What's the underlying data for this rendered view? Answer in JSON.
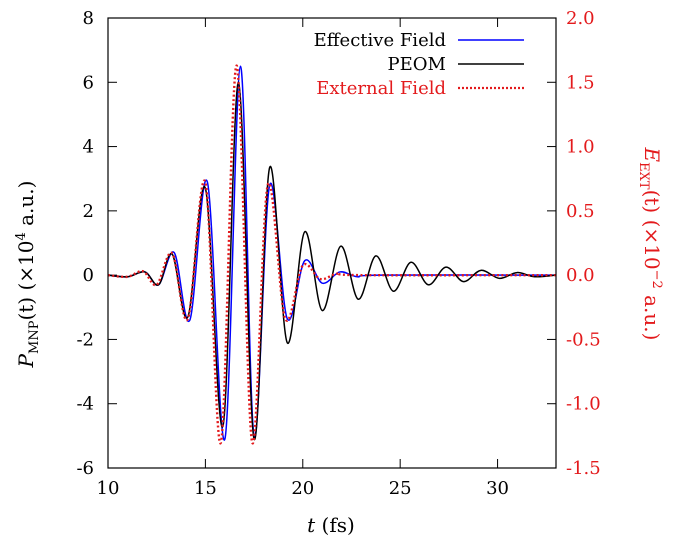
{
  "chart_data": {
    "type": "line",
    "xlabel": {
      "var": "t",
      "rest": " (fs)"
    },
    "ylabel_left": {
      "main": "P",
      "sub": "MNP",
      "rest": "(t) (×10",
      "sup": "4",
      "tail": " a.u.)"
    },
    "ylabel_right": {
      "main": "E",
      "sub": "EXT",
      "rest": "(t) (×10",
      "sup": "−2",
      "tail": " a.u.)",
      "color": "#e31a1c"
    },
    "xlim": [
      10,
      33
    ],
    "ylim_left": [
      -6,
      8
    ],
    "ylim_right": [
      -1.5,
      2.0
    ],
    "xticks": [
      "10",
      "15",
      "20",
      "25",
      "30"
    ],
    "yticks_left": [
      "-6",
      "-4",
      "-2",
      "0",
      "2",
      "4",
      "6",
      "8"
    ],
    "yticks_right": [
      "-1.5",
      "-1.0",
      "-0.5",
      "0.0",
      "0.5",
      "1.0",
      "1.5",
      "2.0"
    ],
    "legend_position": "top-right",
    "series": [
      {
        "name": "Effective Field",
        "color": "#0000ff",
        "style": "solid",
        "points": [
          [
            10.0,
            0.0
          ],
          [
            11.0,
            -0.05
          ],
          [
            11.9,
            0.1
          ],
          [
            12.6,
            -0.3
          ],
          [
            13.4,
            0.7
          ],
          [
            14.2,
            -1.4
          ],
          [
            15.1,
            2.9
          ],
          [
            16.0,
            -5.1
          ],
          [
            16.8,
            6.5
          ],
          [
            17.5,
            -5.0
          ],
          [
            18.3,
            2.8
          ],
          [
            19.2,
            -1.35
          ],
          [
            20.1,
            0.45
          ],
          [
            21.0,
            -0.25
          ],
          [
            21.9,
            0.1
          ],
          [
            22.8,
            -0.05
          ],
          [
            24.0,
            0.0
          ],
          [
            33.0,
            0.0
          ]
        ]
      },
      {
        "name": "PEOM",
        "color": "#000000",
        "style": "solid",
        "points": [
          [
            10.0,
            0.0
          ],
          [
            11.0,
            -0.05
          ],
          [
            11.9,
            0.1
          ],
          [
            12.6,
            -0.3
          ],
          [
            13.3,
            0.65
          ],
          [
            14.1,
            -1.3
          ],
          [
            15.0,
            2.7
          ],
          [
            15.9,
            -4.7
          ],
          [
            16.7,
            6.0
          ],
          [
            17.5,
            -5.1
          ],
          [
            18.3,
            3.35
          ],
          [
            19.2,
            -2.1
          ],
          [
            20.1,
            1.35
          ],
          [
            21.0,
            -1.1
          ],
          [
            21.95,
            0.9
          ],
          [
            22.85,
            -0.75
          ],
          [
            23.75,
            0.6
          ],
          [
            24.65,
            -0.5
          ],
          [
            25.55,
            0.4
          ],
          [
            26.45,
            -0.3
          ],
          [
            27.35,
            0.25
          ],
          [
            28.25,
            -0.2
          ],
          [
            29.15,
            0.15
          ],
          [
            30.1,
            -0.1
          ],
          [
            31.0,
            0.08
          ],
          [
            31.9,
            -0.05
          ],
          [
            33.0,
            0.0
          ]
        ]
      },
      {
        "name": "External Field",
        "color": "#e31a1c",
        "style": "dotted",
        "axis": "right",
        "points": [
          [
            10.0,
            0.0
          ],
          [
            11.0,
            -0.0125
          ],
          [
            11.8,
            0.03
          ],
          [
            12.5,
            -0.075
          ],
          [
            13.3,
            0.17
          ],
          [
            14.1,
            -0.34
          ],
          [
            15.0,
            0.72
          ],
          [
            15.8,
            -1.3
          ],
          [
            16.6,
            1.63
          ],
          [
            17.4,
            -1.3
          ],
          [
            18.2,
            0.7
          ],
          [
            19.1,
            -0.34
          ],
          [
            20.0,
            0.075
          ],
          [
            20.9,
            -0.03
          ],
          [
            21.8,
            0.0125
          ],
          [
            23.0,
            0.0
          ],
          [
            33.0,
            0.0
          ]
        ]
      }
    ]
  }
}
